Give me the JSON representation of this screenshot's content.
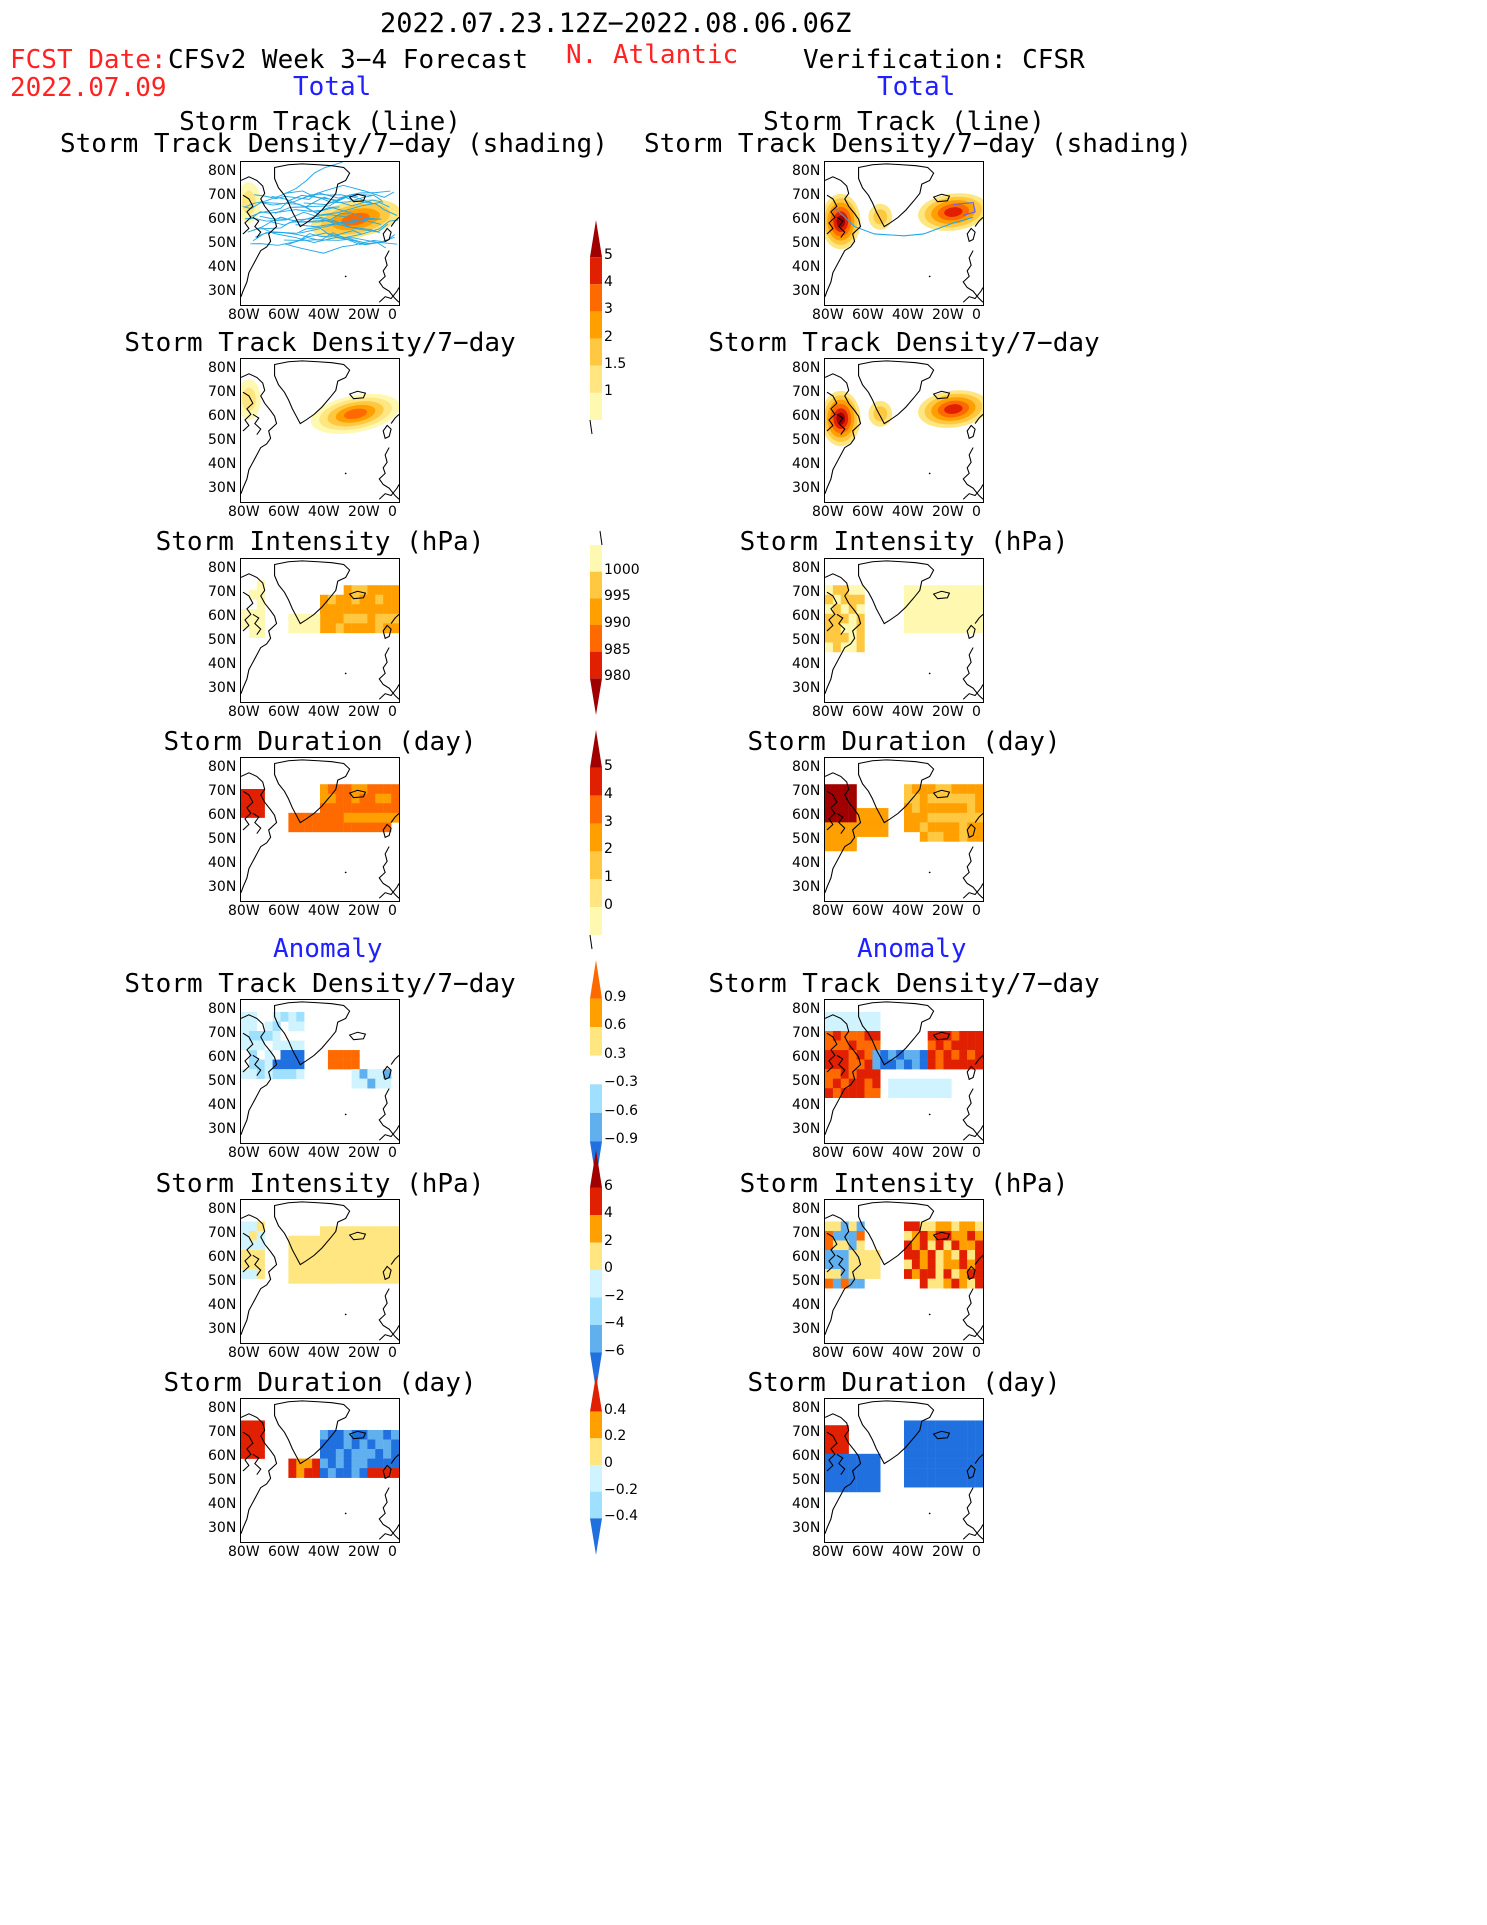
{
  "header": {
    "date_range": "2022.07.23.12Z−2022.08.06.06Z",
    "fcst_label": "FCST Date:",
    "fcst_date": "2022.07.09",
    "left_title": "CFSv2 Week 3−4 Forecast",
    "region": "N. Atlantic",
    "right_title": "Verification: CFSR",
    "total_left": "Total",
    "total_right": "Total",
    "anomaly_left": "Anomaly",
    "anomaly_right": "Anomaly"
  },
  "panel_titles": {
    "track_line": "Storm Track (line)",
    "track_shading": "Storm Track Density/7−day (shading)",
    "density": "Storm Track Density/7−day",
    "intensity": "Storm Intensity (hPa)",
    "duration": "Storm Duration (day)"
  },
  "axes": {
    "lat_ticks": [
      "80N",
      "70N",
      "60N",
      "50N",
      "40N",
      "30N"
    ],
    "lon_ticks": [
      "80W",
      "60W",
      "40W",
      "20W",
      "0"
    ]
  },
  "colorbars": {
    "density_total": [
      "5",
      "4",
      "3",
      "2",
      "1.5",
      "1"
    ],
    "intensity_total": [
      "1000",
      "995",
      "990",
      "985",
      "980"
    ],
    "duration_total": [
      "5",
      "4",
      "3",
      "2",
      "1",
      "0"
    ],
    "density_anom": [
      "0.9",
      "0.6",
      "0.3",
      "−0.3",
      "−0.6",
      "−0.9"
    ],
    "intensity_anom": [
      "6",
      "4",
      "2",
      "0",
      "−2",
      "−4",
      "−6"
    ],
    "duration_anom": [
      "0.4",
      "0.2",
      "0",
      "−0.2",
      "−0.4"
    ]
  },
  "colors": {
    "title_red": "#ff2222",
    "label_blue": "#2020ff",
    "track_line": "#22a8e8",
    "warm": [
      "#fff8b0",
      "#ffe680",
      "#ffc840",
      "#ffa000",
      "#ff6a00",
      "#e02000",
      "#a00000"
    ],
    "cool": [
      "#d0f4ff",
      "#a0e0ff",
      "#60b0f0",
      "#2070e0",
      "#0040c0"
    ]
  },
  "chart_data": {
    "type": "heatmap",
    "title": "2022.07.23.12Z−2022.08.06.06Z N. Atlantic",
    "xlim": [
      "80W",
      "0"
    ],
    "ylim": [
      "25N",
      "85N"
    ],
    "rows": [
      {
        "left": "Storm Track (line) / Storm Track Density/7−day (shading)",
        "right": "Storm Track (line) / Storm Track Density/7−day (shading)"
      },
      {
        "left": "Storm Track Density/7−day",
        "right": "Storm Track Density/7−day"
      },
      {
        "left": "Storm Intensity (hPa)",
        "right": "Storm Intensity (hPa)"
      },
      {
        "left": "Storm Duration (day)",
        "right": "Storm Duration (day)"
      },
      {
        "left": "Anomaly Storm Track Density/7−day",
        "right": "Anomaly Storm Track Density/7−day"
      },
      {
        "left": "Anomaly Storm Intensity (hPa)",
        "right": "Anomaly Storm Intensity (hPa)"
      },
      {
        "left": "Anomaly Storm Duration (day)",
        "right": "Anomaly Storm Duration (day)"
      }
    ]
  }
}
